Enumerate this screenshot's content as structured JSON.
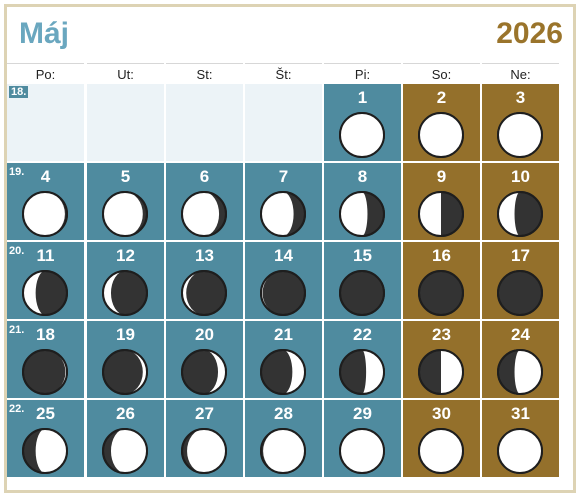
{
  "header": {
    "month": "Máj",
    "year": "2026"
  },
  "weekdays": [
    "Po:",
    "Ut:",
    "St:",
    "Št:",
    "Pi:",
    "So:",
    "Ne:"
  ],
  "colors": {
    "weekday_cell": "#4f8b9f",
    "weekend_cell": "#94702b",
    "empty_cell": "#ecf3f7",
    "month": "#6aa7bf",
    "year": "#9a742b"
  },
  "weeks": [
    {
      "week": "18.",
      "days": [
        {
          "day": "",
          "phase": null
        },
        {
          "day": "",
          "phase": null
        },
        {
          "day": "",
          "phase": null
        },
        {
          "day": "",
          "phase": null
        },
        {
          "day": "1",
          "phase": 0.47
        },
        {
          "day": "2",
          "phase": 0.5
        },
        {
          "day": "3",
          "phase": 0.53
        }
      ]
    },
    {
      "week": "19.",
      "days": [
        {
          "day": "4",
          "phase": 0.57
        },
        {
          "day": "5",
          "phase": 0.6
        },
        {
          "day": "6",
          "phase": 0.63
        },
        {
          "day": "7",
          "phase": 0.67
        },
        {
          "day": "8",
          "phase": 0.71
        },
        {
          "day": "9",
          "phase": 0.75
        },
        {
          "day": "10",
          "phase": 0.79
        }
      ]
    },
    {
      "week": "20.",
      "days": [
        {
          "day": "11",
          "phase": 0.82
        },
        {
          "day": "12",
          "phase": 0.86
        },
        {
          "day": "13",
          "phase": 0.9
        },
        {
          "day": "14",
          "phase": 0.94
        },
        {
          "day": "15",
          "phase": 0.98
        },
        {
          "day": "16",
          "phase": 0.0
        },
        {
          "day": "17",
          "phase": 0.02
        }
      ]
    },
    {
      "week": "21.",
      "days": [
        {
          "day": "18",
          "phase": 0.06
        },
        {
          "day": "19",
          "phase": 0.1
        },
        {
          "day": "20",
          "phase": 0.14
        },
        {
          "day": "21",
          "phase": 0.18
        },
        {
          "day": "22",
          "phase": 0.22
        },
        {
          "day": "23",
          "phase": 0.25
        },
        {
          "day": "24",
          "phase": 0.29
        }
      ]
    },
    {
      "week": "22.",
      "days": [
        {
          "day": "25",
          "phase": 0.32
        },
        {
          "day": "26",
          "phase": 0.36
        },
        {
          "day": "27",
          "phase": 0.39
        },
        {
          "day": "28",
          "phase": 0.43
        },
        {
          "day": "29",
          "phase": 0.46
        },
        {
          "day": "30",
          "phase": 0.49
        },
        {
          "day": "31",
          "phase": 0.52
        }
      ]
    }
  ]
}
